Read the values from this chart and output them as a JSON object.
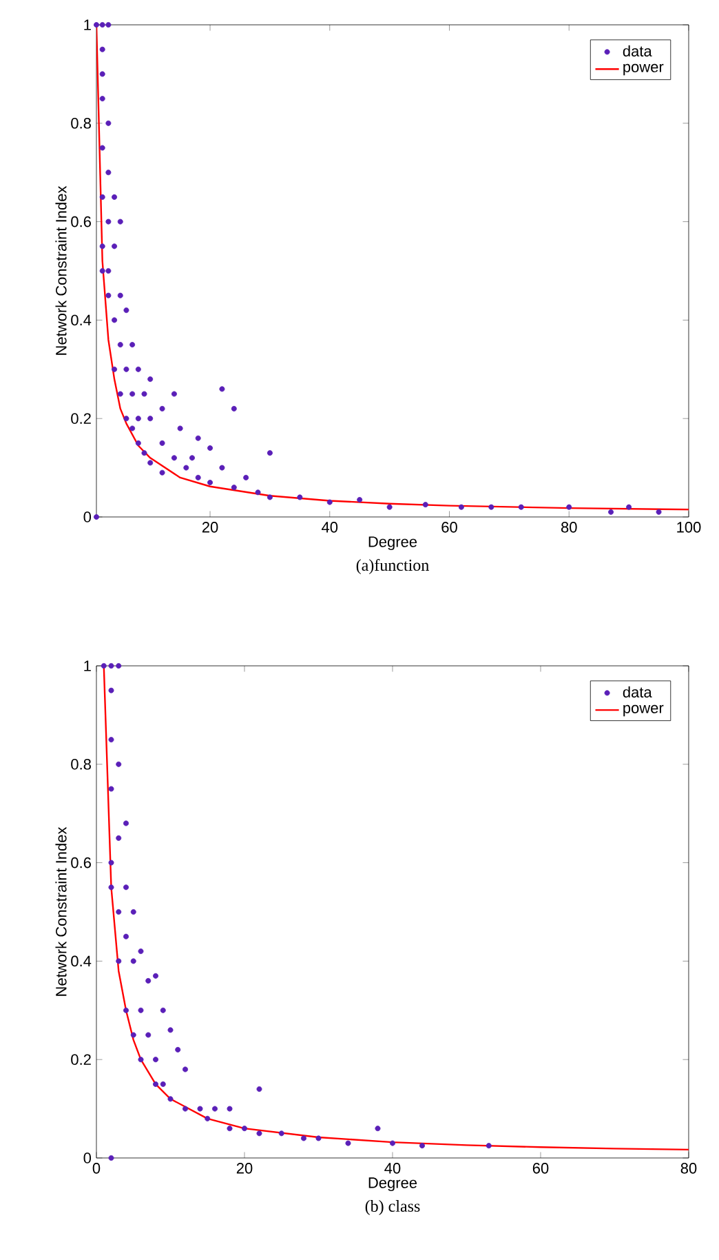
{
  "chart_data": [
    {
      "type": "scatter",
      "xlabel": "Degree",
      "ylabel": "Network Constraint Index",
      "annotations": [
        "(a)function"
      ],
      "xlim": [
        1,
        100
      ],
      "ylim": [
        0,
        1
      ],
      "xticks": [
        20,
        40,
        60,
        80,
        100
      ],
      "yticks": [
        0,
        0.2,
        0.4,
        0.6,
        0.8,
        1
      ],
      "legend": "top right",
      "grid": false,
      "series": [
        {
          "name": "data",
          "marker": "circle",
          "color": "#5a1fb8",
          "x": [
            1,
            1,
            2,
            3,
            2,
            2,
            2,
            2,
            2,
            2,
            2,
            3,
            3,
            3,
            3,
            3,
            4,
            4,
            4,
            4,
            5,
            5,
            5,
            5,
            6,
            6,
            6,
            7,
            7,
            7,
            8,
            8,
            8,
            9,
            9,
            10,
            10,
            10,
            12,
            12,
            12,
            14,
            14,
            15,
            16,
            17,
            18,
            18,
            20,
            20,
            22,
            22,
            24,
            24,
            26,
            28,
            30,
            30,
            35,
            40,
            45,
            50,
            56,
            62,
            67,
            72,
            80,
            87,
            90,
            95
          ],
          "values": [
            1,
            0,
            1,
            1,
            0.95,
            0.9,
            0.85,
            0.75,
            0.65,
            0.55,
            0.5,
            0.8,
            0.7,
            0.6,
            0.5,
            0.45,
            0.65,
            0.55,
            0.4,
            0.3,
            0.6,
            0.45,
            0.35,
            0.25,
            0.42,
            0.3,
            0.2,
            0.35,
            0.25,
            0.18,
            0.3,
            0.2,
            0.15,
            0.25,
            0.13,
            0.28,
            0.2,
            0.11,
            0.22,
            0.15,
            0.09,
            0.25,
            0.12,
            0.18,
            0.1,
            0.12,
            0.16,
            0.08,
            0.14,
            0.07,
            0.26,
            0.1,
            0.22,
            0.06,
            0.08,
            0.05,
            0.13,
            0.04,
            0.04,
            0.03,
            0.035,
            0.02,
            0.025,
            0.02,
            0.02,
            0.02,
            0.02,
            0.01,
            0.02,
            0.01
          ]
        },
        {
          "name": "power",
          "type": "line",
          "marker": "none",
          "color": "#ff0000",
          "x": [
            1,
            2,
            3,
            4,
            5,
            6,
            8,
            10,
            15,
            20,
            30,
            40,
            50,
            60,
            80,
            100
          ],
          "values": [
            1,
            0.52,
            0.36,
            0.28,
            0.22,
            0.19,
            0.145,
            0.12,
            0.08,
            0.062,
            0.043,
            0.033,
            0.027,
            0.023,
            0.018,
            0.015
          ]
        }
      ]
    },
    {
      "type": "scatter",
      "xlabel": "Degree",
      "ylabel": "Network Constraint Index",
      "annotations": [
        "(b) class"
      ],
      "xlim": [
        0,
        80
      ],
      "ylim": [
        0,
        1
      ],
      "xticks": [
        0,
        20,
        40,
        60,
        80
      ],
      "yticks": [
        0,
        0.2,
        0.4,
        0.6,
        0.8,
        1
      ],
      "legend": "top right",
      "grid": false,
      "series": [
        {
          "name": "data",
          "marker": "circle",
          "color": "#5a1fb8",
          "x": [
            1,
            2,
            2,
            3,
            2,
            2,
            2,
            2,
            2,
            3,
            3,
            3,
            3,
            4,
            4,
            4,
            4,
            5,
            5,
            5,
            6,
            6,
            6,
            7,
            7,
            8,
            8,
            8,
            9,
            9,
            10,
            10,
            11,
            12,
            12,
            14,
            15,
            16,
            18,
            18,
            20,
            22,
            22,
            25,
            28,
            30,
            34,
            38,
            40,
            44,
            53
          ],
          "values": [
            1,
            0,
            1,
            1,
            0.95,
            0.85,
            0.75,
            0.6,
            0.55,
            0.8,
            0.65,
            0.5,
            0.4,
            0.68,
            0.55,
            0.45,
            0.3,
            0.5,
            0.4,
            0.25,
            0.42,
            0.3,
            0.2,
            0.36,
            0.25,
            0.37,
            0.2,
            0.15,
            0.3,
            0.15,
            0.26,
            0.12,
            0.22,
            0.18,
            0.1,
            0.1,
            0.08,
            0.1,
            0.1,
            0.06,
            0.06,
            0.14,
            0.05,
            0.05,
            0.04,
            0.04,
            0.03,
            0.06,
            0.03,
            0.025,
            0.025
          ]
        },
        {
          "name": "power",
          "type": "line",
          "marker": "none",
          "color": "#ff0000",
          "x": [
            1,
            2,
            3,
            4,
            5,
            6,
            8,
            10,
            15,
            20,
            30,
            40,
            50,
            60,
            70,
            80
          ],
          "values": [
            1,
            0.55,
            0.38,
            0.3,
            0.24,
            0.2,
            0.15,
            0.12,
            0.08,
            0.06,
            0.042,
            0.032,
            0.026,
            0.022,
            0.019,
            0.017
          ]
        }
      ]
    }
  ]
}
